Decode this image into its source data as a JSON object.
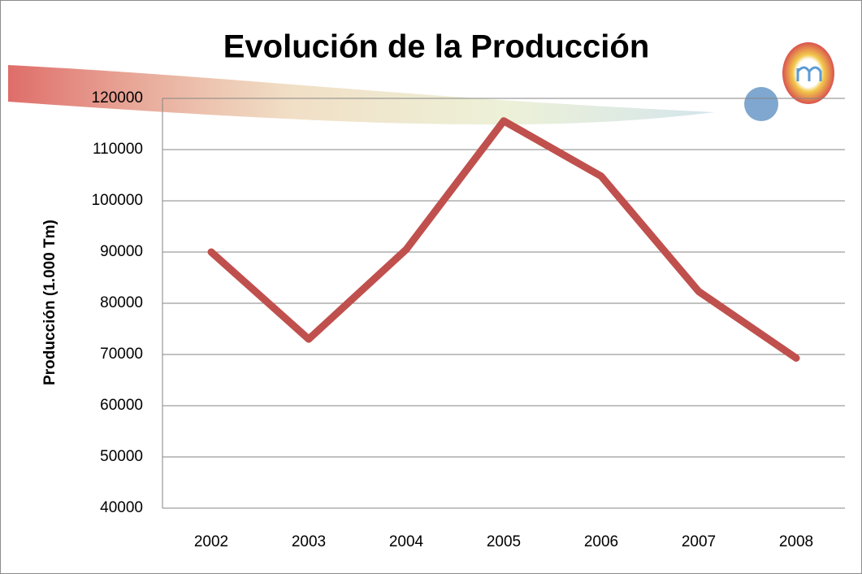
{
  "chart_data": {
    "type": "line",
    "title": "Evolución de la Producción",
    "y_label": "Producción (1.000 Tm)",
    "categories": [
      "2002",
      "2003",
      "2004",
      "2005",
      "2006",
      "2007",
      "2008"
    ],
    "values": [
      90000,
      73000,
      90500,
      115600,
      104800,
      82300,
      69300
    ],
    "color": "#c0504d",
    "ylim": [
      40000,
      120000
    ],
    "yticks": [
      40000,
      50000,
      60000,
      70000,
      80000,
      90000,
      100000,
      110000,
      120000
    ],
    "grid": true
  }
}
